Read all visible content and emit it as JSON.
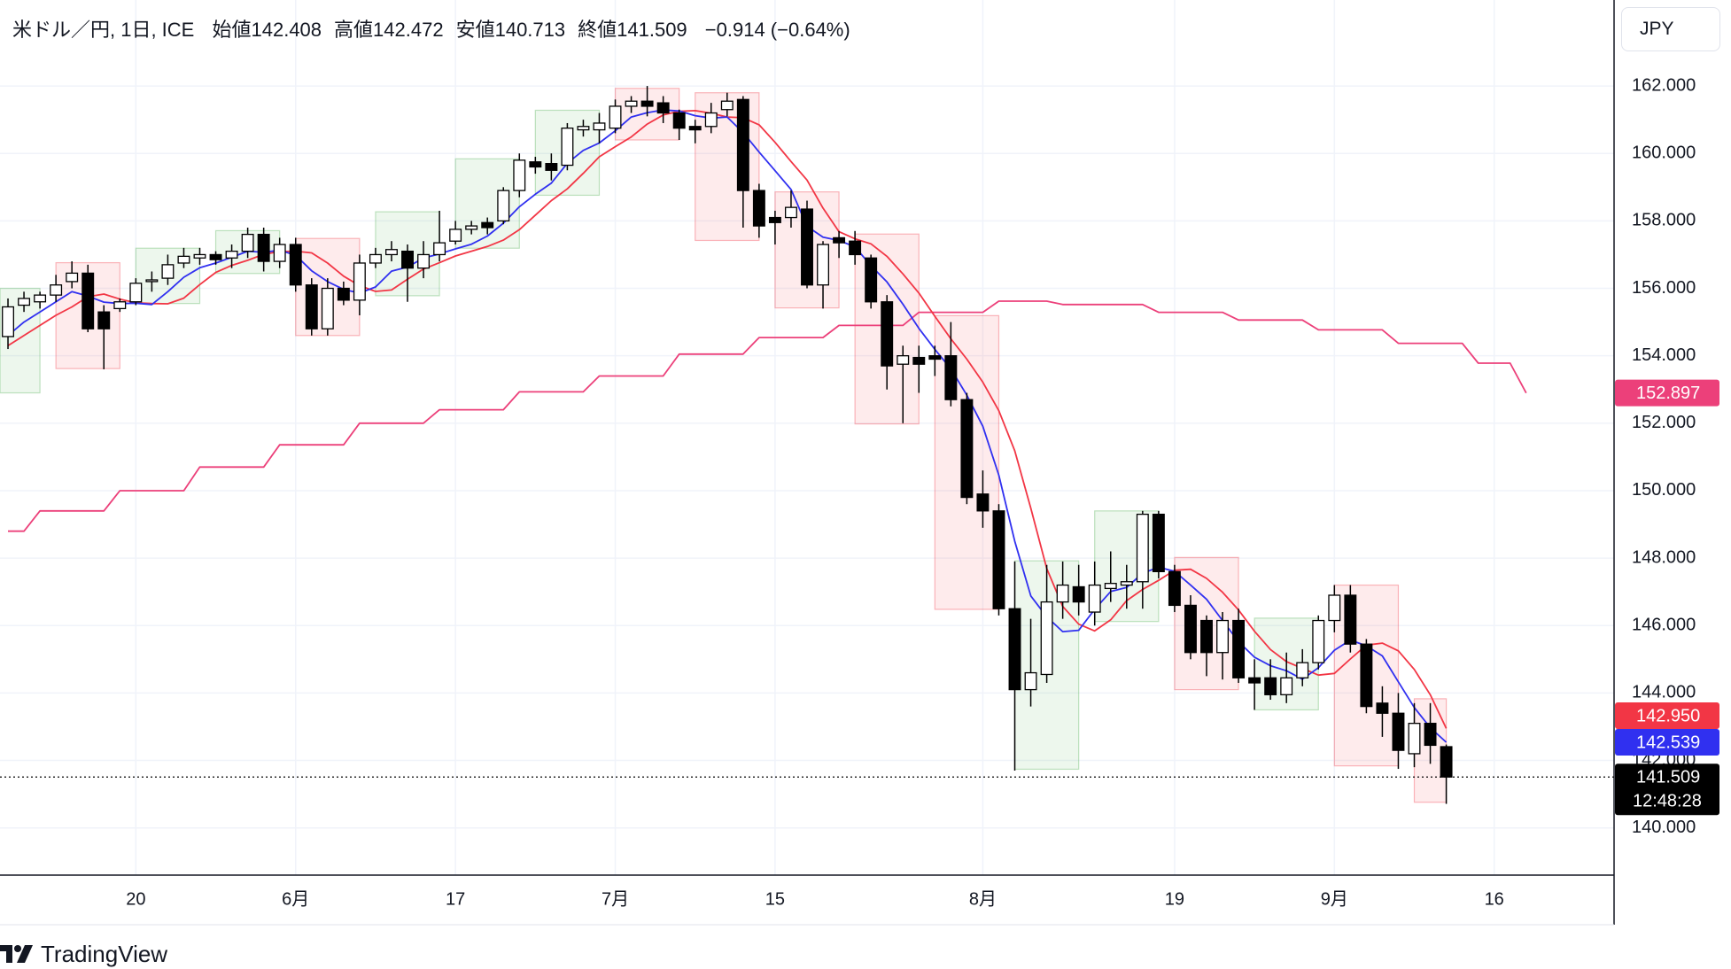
{
  "header": {
    "symbol": "米ドル／円, 1日, ICE",
    "fields": [
      {
        "label": "始値",
        "value": "142.408"
      },
      {
        "label": "高値",
        "value": "142.472"
      },
      {
        "label": "安値",
        "value": "140.713"
      },
      {
        "label": "終値",
        "value": "141.509"
      }
    ],
    "change": "−0.914 (−0.64%)"
  },
  "currency_button": "JPY",
  "brand": "TradingView",
  "chart_data": {
    "type": "candlestick",
    "categories": [
      null,
      null,
      null,
      null,
      null,
      null,
      null,
      null,
      "20",
      null,
      null,
      null,
      null,
      null,
      null,
      null,
      null,
      null,
      "6月",
      null,
      null,
      null,
      null,
      null,
      null,
      null,
      null,
      null,
      "17",
      null,
      null,
      null,
      null,
      null,
      null,
      null,
      null,
      null,
      "7月",
      null,
      null,
      null,
      null,
      null,
      null,
      null,
      null,
      null,
      "15",
      null,
      null,
      null,
      null,
      null,
      null,
      null,
      null,
      null,
      null,
      null,
      null,
      "8月",
      null,
      null,
      null,
      null,
      null,
      null,
      null,
      null,
      null,
      null,
      null,
      "19",
      null,
      null,
      null,
      null,
      null,
      null,
      null,
      null,
      null,
      "9月",
      null,
      null,
      null,
      null,
      null,
      null,
      null,
      null,
      null,
      "16",
      null,
      null,
      null,
      null,
      null,
      null,
      null
    ],
    "open": [
      154.57,
      155.5,
      155.6,
      155.8,
      156.2,
      156.45,
      155.3,
      155.4,
      155.6,
      156.2,
      156.3,
      156.75,
      156.9,
      157.0,
      156.9,
      157.1,
      157.6,
      156.8,
      157.3,
      156.1,
      154.8,
      156.0,
      155.65,
      156.75,
      157.0,
      157.1,
      156.6,
      157.0,
      157.4,
      157.75,
      157.95,
      158.0,
      158.9,
      159.75,
      159.7,
      159.65,
      160.7,
      160.7,
      160.75,
      161.4,
      161.55,
      161.5,
      161.2,
      160.8,
      160.8,
      161.3,
      161.6,
      158.9,
      158.1,
      158.1,
      158.35,
      156.1,
      157.5,
      157.4,
      156.9,
      155.6,
      153.75,
      153.95,
      154.0,
      154.0,
      152.7,
      149.9,
      149.4,
      146.5,
      144.1,
      144.55,
      146.7,
      147.15,
      146.4,
      147.1,
      147.2,
      147.3,
      149.3,
      147.6,
      146.6,
      146.15,
      145.2,
      146.15,
      144.45,
      144.45,
      143.95,
      144.45,
      144.9,
      146.15,
      146.9,
      145.45,
      143.7,
      143.4,
      142.2,
      143.1,
      142.408,
      null,
      null,
      null,
      null,
      null,
      null,
      null,
      null,
      null,
      null
    ],
    "high": [
      155.7,
      155.9,
      155.9,
      156.4,
      156.8,
      156.7,
      155.5,
      155.7,
      156.3,
      156.5,
      157.0,
      157.2,
      157.2,
      157.1,
      157.3,
      157.8,
      157.8,
      157.5,
      157.5,
      156.3,
      156.3,
      156.2,
      157.0,
      157.2,
      157.4,
      157.3,
      157.4,
      158.3,
      158.0,
      158.0,
      158.1,
      159.0,
      160.0,
      159.9,
      160.0,
      160.9,
      161.0,
      161.2,
      161.6,
      161.7,
      162.0,
      161.7,
      161.3,
      161.0,
      161.5,
      161.8,
      161.7,
      159.1,
      158.3,
      158.9,
      158.6,
      157.4,
      157.7,
      157.7,
      157.0,
      155.8,
      154.3,
      154.3,
      154.3,
      155.0,
      152.9,
      150.6,
      149.6,
      147.9,
      146.2,
      147.8,
      147.9,
      147.8,
      147.9,
      148.2,
      147.8,
      149.4,
      149.4,
      147.8,
      146.9,
      146.3,
      146.4,
      146.5,
      145.0,
      145.0,
      145.2,
      145.3,
      146.3,
      147.2,
      147.2,
      145.6,
      144.2,
      144.0,
      143.7,
      143.7,
      142.472,
      null,
      null,
      null,
      null,
      null,
      null,
      null,
      null,
      null,
      null
    ],
    "low": [
      154.2,
      155.3,
      155.4,
      155.6,
      156.0,
      154.7,
      153.6,
      155.3,
      155.5,
      155.9,
      156.1,
      156.6,
      156.7,
      156.7,
      156.6,
      156.9,
      156.5,
      156.6,
      155.9,
      154.6,
      154.6,
      155.5,
      155.2,
      156.6,
      156.8,
      155.6,
      156.3,
      156.8,
      157.3,
      157.6,
      157.6,
      157.9,
      158.7,
      159.4,
      159.2,
      159.5,
      160.5,
      160.3,
      160.6,
      161.2,
      161.1,
      160.9,
      160.4,
      160.3,
      160.6,
      161.1,
      157.8,
      157.5,
      157.3,
      157.8,
      156.0,
      155.4,
      156.9,
      156.7,
      155.4,
      153.0,
      152.0,
      152.9,
      153.4,
      152.5,
      149.6,
      148.9,
      146.3,
      141.7,
      143.6,
      144.3,
      146.2,
      146.3,
      146.0,
      146.7,
      146.5,
      146.5,
      147.4,
      146.4,
      145.0,
      144.5,
      144.4,
      144.3,
      143.5,
      143.8,
      143.7,
      144.2,
      144.7,
      145.8,
      145.2,
      143.4,
      142.7,
      141.75,
      141.8,
      141.9,
      140.713,
      null,
      null,
      null,
      null,
      null,
      null,
      null,
      null,
      null,
      null
    ],
    "close": [
      155.45,
      155.7,
      155.8,
      156.1,
      156.45,
      154.8,
      154.8,
      155.6,
      156.15,
      156.25,
      156.7,
      156.95,
      157.0,
      156.85,
      157.1,
      157.6,
      156.8,
      157.3,
      156.1,
      154.8,
      156.0,
      155.65,
      156.75,
      157.0,
      157.15,
      156.6,
      157.0,
      157.35,
      157.75,
      157.85,
      157.8,
      158.9,
      159.8,
      159.6,
      159.5,
      160.75,
      160.8,
      160.9,
      161.4,
      161.55,
      161.4,
      161.2,
      160.75,
      160.7,
      161.2,
      161.55,
      158.9,
      157.85,
      157.95,
      158.4,
      156.1,
      157.3,
      157.35,
      157.0,
      155.6,
      153.7,
      154.0,
      153.75,
      153.9,
      152.7,
      149.8,
      149.4,
      146.5,
      144.1,
      144.6,
      146.7,
      147.2,
      146.7,
      147.2,
      147.25,
      147.3,
      149.3,
      147.6,
      146.6,
      145.2,
      145.2,
      146.15,
      144.45,
      144.3,
      143.95,
      144.45,
      144.9,
      146.15,
      146.9,
      145.45,
      143.6,
      143.4,
      142.3,
      143.1,
      142.45,
      141.509,
      null,
      null,
      null,
      null,
      null,
      null,
      null,
      null,
      null,
      null
    ],
    "up_color": "#ffffff",
    "down_color": "#000000",
    "candle_border": "#000000",
    "series": [
      {
        "color": "#ec407a",
        "values": [
          148.8,
          148.8,
          149.4,
          149.4,
          149.4,
          149.4,
          149.4,
          150.0,
          150.0,
          150.0,
          150.0,
          150.0,
          150.7,
          150.7,
          150.7,
          150.7,
          150.7,
          151.36,
          151.36,
          151.36,
          151.36,
          151.36,
          152.0,
          152.0,
          152.0,
          152.0,
          152.0,
          152.4,
          152.4,
          152.4,
          152.4,
          152.4,
          152.93,
          152.93,
          152.93,
          152.93,
          152.93,
          153.4,
          153.4,
          153.4,
          153.4,
          153.4,
          154.05,
          154.05,
          154.05,
          154.05,
          154.05,
          154.54,
          154.54,
          154.54,
          154.54,
          154.54,
          154.9,
          154.9,
          154.9,
          154.9,
          154.9,
          155.29,
          155.29,
          155.29,
          155.29,
          155.29,
          155.62,
          155.62,
          155.62,
          155.62,
          155.52,
          155.52,
          155.52,
          155.52,
          155.52,
          155.52,
          155.29,
          155.29,
          155.29,
          155.29,
          155.29,
          155.06,
          155.06,
          155.06,
          155.06,
          155.06,
          154.77,
          154.77,
          154.77,
          154.77,
          154.77,
          154.37,
          154.37,
          154.37,
          154.37,
          154.37,
          153.78,
          153.78,
          153.78,
          152.897,
          null,
          null,
          null,
          null,
          null
        ]
      },
      {
        "color": "#f23645",
        "values": [
          154.3,
          154.6,
          154.9,
          155.2,
          155.45,
          155.75,
          155.83,
          155.68,
          155.57,
          155.55,
          155.54,
          155.71,
          156.11,
          156.47,
          156.68,
          156.83,
          157.01,
          157.09,
          157.1,
          157.05,
          156.75,
          156.36,
          156.08,
          155.91,
          155.95,
          156.27,
          156.57,
          156.76,
          156.96,
          157.1,
          157.24,
          157.43,
          157.74,
          158.17,
          158.6,
          158.95,
          159.41,
          159.9,
          160.2,
          160.49,
          160.87,
          161.14,
          161.25,
          161.27,
          161.19,
          161.08,
          161.06,
          160.85,
          160.33,
          159.76,
          159.21,
          158.38,
          157.68,
          157.47,
          157.32,
          156.95,
          156.43,
          155.86,
          155.17,
          154.5,
          153.9,
          153.22,
          152.37,
          151.18,
          149.48,
          147.69,
          146.57,
          146.04,
          145.84,
          146.17,
          146.74,
          147.07,
          147.34,
          147.64,
          147.67,
          147.4,
          146.99,
          146.46,
          145.83,
          145.29,
          144.93,
          144.73,
          144.53,
          144.58,
          145.01,
          145.42,
          145.48,
          145.25,
          144.7,
          143.95,
          142.95,
          null,
          null,
          null,
          null,
          null,
          null,
          null,
          null,
          null,
          null
        ]
      },
      {
        "color": "#3030f0",
        "values": [
          154.6,
          155.0,
          155.3,
          155.6,
          155.9,
          155.77,
          155.59,
          155.55,
          155.56,
          155.52,
          155.9,
          156.33,
          156.61,
          156.75,
          156.92,
          157.1,
          157.07,
          157.13,
          156.98,
          156.52,
          156.2,
          155.97,
          155.86,
          156.04,
          156.51,
          156.63,
          156.9,
          157.02,
          157.17,
          157.31,
          157.55,
          157.93,
          158.42,
          158.79,
          159.12,
          159.71,
          160.09,
          160.31,
          160.67,
          161.08,
          161.21,
          161.29,
          161.26,
          161.12,
          161.05,
          161.08,
          160.62,
          160.04,
          159.49,
          158.93,
          157.84,
          157.52,
          157.42,
          157.23,
          156.67,
          156.19,
          155.53,
          154.81,
          154.19,
          153.61,
          152.83,
          151.91,
          150.46,
          148.5,
          146.88,
          146.26,
          145.82,
          145.86,
          146.48,
          147.01,
          147.13,
          147.55,
          147.73,
          147.61,
          147.2,
          146.78,
          146.15,
          145.52,
          145.06,
          144.81,
          144.66,
          144.41,
          144.75,
          145.27,
          145.57,
          145.4,
          145.1,
          144.33,
          143.57,
          142.97,
          142.539,
          null,
          null,
          null,
          null,
          null,
          null,
          null,
          null,
          null,
          null
        ]
      }
    ],
    "weekly_ranges": [
      {
        "high": 156.0,
        "low": 152.9,
        "color": "#4caf50"
      },
      {
        "high": 156.76,
        "low": 153.62,
        "color": "#f23645"
      },
      {
        "high": 157.19,
        "low": 155.55,
        "color": "#4caf50"
      },
      {
        "high": 157.71,
        "low": 156.44,
        "color": "#4caf50"
      },
      {
        "high": 157.48,
        "low": 154.6,
        "color": "#f23645"
      },
      {
        "high": 158.27,
        "low": 155.78,
        "color": "#4caf50"
      },
      {
        "high": 159.84,
        "low": 157.19,
        "color": "#4caf50"
      },
      {
        "high": 161.28,
        "low": 158.76,
        "color": "#4caf50"
      },
      {
        "high": 161.93,
        "low": 160.4,
        "color": "#f23645"
      },
      {
        "high": 161.8,
        "low": 157.42,
        "color": "#f23645"
      },
      {
        "high": 158.86,
        "low": 155.42,
        "color": "#f23645"
      },
      {
        "high": 157.61,
        "low": 151.98,
        "color": "#f23645"
      },
      {
        "high": 155.19,
        "low": 146.48,
        "color": "#f23645"
      },
      {
        "high": 147.92,
        "low": 141.74,
        "color": "#4caf50"
      },
      {
        "high": 149.4,
        "low": 146.12,
        "color": "#4caf50"
      },
      {
        "high": 148.02,
        "low": 144.1,
        "color": "#f23645"
      },
      {
        "high": 146.22,
        "low": 143.5,
        "color": "#4caf50"
      },
      {
        "high": 147.2,
        "low": 141.84,
        "color": "#f23645"
      },
      {
        "high": 143.83,
        "low": 140.76,
        "color": "#f23645"
      }
    ],
    "price_labels": [
      {
        "value": 152.897,
        "label": "152.897",
        "color": "#ec407a"
      },
      {
        "value": 142.95,
        "label": "142.950",
        "color": "#f23645"
      },
      {
        "value": 142.539,
        "label": "142.539",
        "color": "#3030f0"
      },
      {
        "value": 141.509,
        "label": "141.509",
        "color": "#000000",
        "countdown": "12:48:28"
      }
    ],
    "ylim": [
      138.6,
      164.55
    ],
    "yticks": [
      {
        "value": 140,
        "label": "140.000"
      },
      {
        "value": 142,
        "label": "142.000"
      },
      {
        "value": 144,
        "label": "144.000"
      },
      {
        "value": 146,
        "label": "146.000"
      },
      {
        "value": 148,
        "label": "148.000"
      },
      {
        "value": 150,
        "label": "150.000"
      },
      {
        "value": 152,
        "label": "152.000"
      },
      {
        "value": 154,
        "label": "154.000"
      },
      {
        "value": 156,
        "label": "156.000"
      },
      {
        "value": 158,
        "label": "158.000"
      },
      {
        "value": 160,
        "label": "160.000"
      },
      {
        "value": 162,
        "label": "162.000"
      }
    ],
    "grid": true
  }
}
